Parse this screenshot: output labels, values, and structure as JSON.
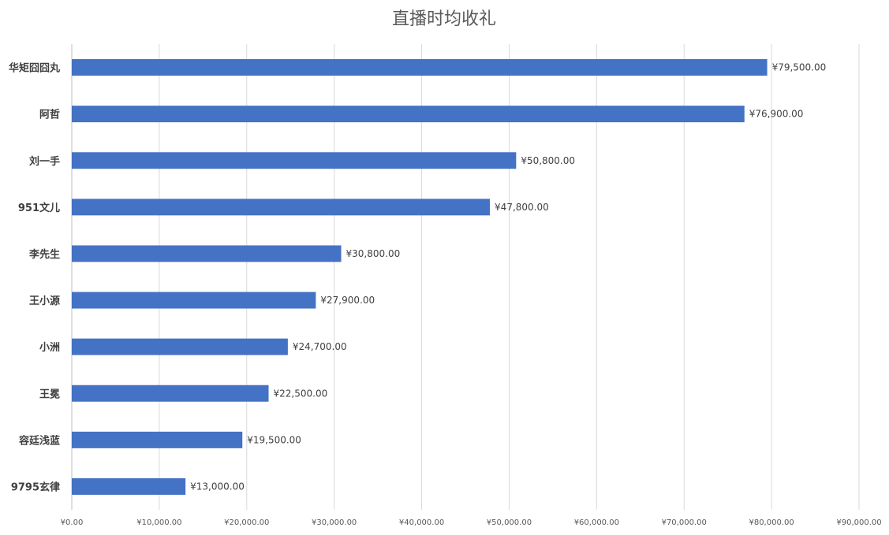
{
  "chart_data": {
    "type": "bar",
    "orientation": "horizontal",
    "title": "直播时均收礼",
    "xlabel": "",
    "ylabel": "",
    "categories": [
      "华矩囧囧丸",
      "阿哲",
      "刘一手",
      "951文儿",
      "李先生",
      "王小源",
      "小洲",
      "王冕",
      "容廷浅蓝",
      "9795玄律"
    ],
    "values": [
      79500,
      76900,
      50800,
      47800,
      30800,
      27900,
      24700,
      22500,
      19500,
      13000
    ],
    "data_labels": [
      "¥79,500.00",
      "¥76,900.00",
      "¥50,800.00",
      "¥47,800.00",
      "¥30,800.00",
      "¥27,900.00",
      "¥24,700.00",
      "¥22,500.00",
      "¥19,500.00",
      "¥13,000.00"
    ],
    "xlim": [
      0,
      90000
    ],
    "x_ticks": [
      0,
      10000,
      20000,
      30000,
      40000,
      50000,
      60000,
      70000,
      80000,
      90000
    ],
    "x_tick_labels": [
      "¥0.00",
      "¥10,000.00",
      "¥20,000.00",
      "¥30,000.00",
      "¥40,000.00",
      "¥50,000.00",
      "¥60,000.00",
      "¥70,000.00",
      "¥80,000.00",
      "¥90,000.00"
    ],
    "grid": true,
    "legend": "none",
    "bar_color": "#4472C4"
  }
}
